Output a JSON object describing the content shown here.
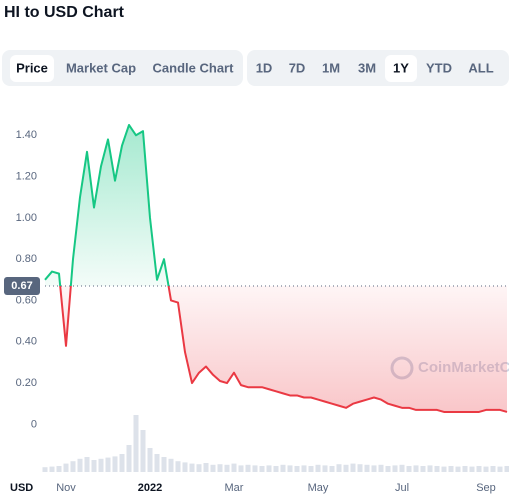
{
  "title": "HI to USD Chart",
  "tabs": {
    "items": [
      "Price",
      "Market Cap",
      "Candle Chart"
    ],
    "selected": 0
  },
  "ranges": {
    "items": [
      "1D",
      "7D",
      "1M",
      "3M",
      "1Y",
      "YTD",
      "ALL"
    ],
    "selected": 4
  },
  "watermark": "CoinMarketCap",
  "currency": "USD",
  "chart_data": {
    "type": "line",
    "categories": [
      null,
      null,
      null,
      "Nov",
      null,
      null,
      null,
      null,
      null,
      null,
      null,
      null,
      null,
      null,
      null,
      "2022",
      null,
      null,
      null,
      null,
      null,
      null,
      null,
      null,
      null,
      null,
      null,
      "Mar",
      null,
      null,
      null,
      null,
      null,
      null,
      null,
      null,
      null,
      null,
      null,
      "May",
      null,
      null,
      null,
      null,
      null,
      null,
      null,
      null,
      null,
      null,
      null,
      "Jul",
      null,
      null,
      null,
      null,
      null,
      null,
      null,
      null,
      null,
      null,
      null,
      "Sep",
      null,
      null,
      null
    ],
    "values": [
      0.7,
      0.74,
      0.73,
      0.38,
      0.8,
      1.1,
      1.32,
      1.05,
      1.25,
      1.38,
      1.18,
      1.35,
      1.45,
      1.4,
      1.42,
      1.0,
      0.7,
      0.8,
      0.6,
      0.59,
      0.35,
      0.2,
      0.25,
      0.28,
      0.24,
      0.21,
      0.2,
      0.25,
      0.19,
      0.18,
      0.18,
      0.18,
      0.17,
      0.16,
      0.15,
      0.14,
      0.14,
      0.13,
      0.13,
      0.12,
      0.11,
      0.1,
      0.09,
      0.08,
      0.1,
      0.11,
      0.12,
      0.13,
      0.12,
      0.1,
      0.09,
      0.08,
      0.08,
      0.07,
      0.07,
      0.07,
      0.07,
      0.06,
      0.06,
      0.06,
      0.06,
      0.06,
      0.06,
      0.07,
      0.07,
      0.07,
      0.06
    ],
    "volume": [
      8,
      9,
      10,
      14,
      18,
      22,
      25,
      20,
      22,
      24,
      26,
      30,
      45,
      95,
      70,
      40,
      30,
      25,
      22,
      18,
      16,
      14,
      13,
      15,
      12,
      13,
      12,
      14,
      11,
      12,
      11,
      10,
      11,
      10,
      12,
      11,
      10,
      11,
      10,
      12,
      11,
      10,
      13,
      12,
      14,
      13,
      12,
      11,
      12,
      10,
      11,
      12,
      10,
      11,
      10,
      11,
      10,
      9,
      10,
      9,
      10,
      9,
      10,
      9,
      10,
      9,
      10
    ],
    "ylim": [
      -0.1,
      1.6
    ],
    "yticks": [
      0,
      {
        "value": 0.2,
        "label": "0.20"
      },
      {
        "value": 0.4,
        "label": "0.40"
      },
      {
        "value": 0.6,
        "label": "0.60"
      },
      {
        "value": 0.8,
        "label": "0.80"
      },
      {
        "value": 1.0,
        "label": "1.00"
      },
      {
        "value": 1.2,
        "label": "1.20"
      },
      {
        "value": 1.4,
        "label": "1.40"
      }
    ],
    "y2lim": [
      0,
      100
    ],
    "baseline": 0.67,
    "up_color": "#16c784",
    "down_color": "#ea3943",
    "grid": false
  }
}
